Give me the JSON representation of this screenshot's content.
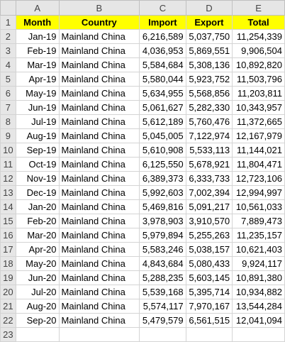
{
  "columns": [
    "A",
    "B",
    "C",
    "D",
    "E"
  ],
  "header_row_number": "1",
  "headers": [
    "Month",
    "Country",
    "Import",
    "Export",
    "Total"
  ],
  "header_fill_color": "#ffff00",
  "rows": [
    {
      "n": "2",
      "month": "Jan-19",
      "country": "Mainland China",
      "import": "6,216,589",
      "export": "5,037,750",
      "total": "11,254,339"
    },
    {
      "n": "3",
      "month": "Feb-19",
      "country": "Mainland China",
      "import": "4,036,953",
      "export": "5,869,551",
      "total": "9,906,504"
    },
    {
      "n": "4",
      "month": "Mar-19",
      "country": "Mainland China",
      "import": "5,584,684",
      "export": "5,308,136",
      "total": "10,892,820"
    },
    {
      "n": "5",
      "month": "Apr-19",
      "country": "Mainland China",
      "import": "5,580,044",
      "export": "5,923,752",
      "total": "11,503,796"
    },
    {
      "n": "6",
      "month": "May-19",
      "country": "Mainland China",
      "import": "5,634,955",
      "export": "5,568,856",
      "total": "11,203,811"
    },
    {
      "n": "7",
      "month": "Jun-19",
      "country": "Mainland China",
      "import": "5,061,627",
      "export": "5,282,330",
      "total": "10,343,957"
    },
    {
      "n": "8",
      "month": "Jul-19",
      "country": "Mainland China",
      "import": "5,612,189",
      "export": "5,760,476",
      "total": "11,372,665"
    },
    {
      "n": "9",
      "month": "Aug-19",
      "country": "Mainland China",
      "import": "5,045,005",
      "export": "7,122,974",
      "total": "12,167,979"
    },
    {
      "n": "10",
      "month": "Sep-19",
      "country": "Mainland China",
      "import": "5,610,908",
      "export": "5,533,113",
      "total": "11,144,021"
    },
    {
      "n": "11",
      "month": "Oct-19",
      "country": "Mainland China",
      "import": "6,125,550",
      "export": "5,678,921",
      "total": "11,804,471"
    },
    {
      "n": "12",
      "month": "Nov-19",
      "country": "Mainland China",
      "import": "6,389,373",
      "export": "6,333,733",
      "total": "12,723,106"
    },
    {
      "n": "13",
      "month": "Dec-19",
      "country": "Mainland China",
      "import": "5,992,603",
      "export": "7,002,394",
      "total": "12,994,997"
    },
    {
      "n": "14",
      "month": "Jan-20",
      "country": "Mainland China",
      "import": "5,469,816",
      "export": "5,091,217",
      "total": "10,561,033"
    },
    {
      "n": "15",
      "month": "Feb-20",
      "country": "Mainland China",
      "import": "3,978,903",
      "export": "3,910,570",
      "total": "7,889,473"
    },
    {
      "n": "16",
      "month": "Mar-20",
      "country": "Mainland China",
      "import": "5,979,894",
      "export": "5,255,263",
      "total": "11,235,157"
    },
    {
      "n": "17",
      "month": "Apr-20",
      "country": "Mainland China",
      "import": "5,583,246",
      "export": "5,038,157",
      "total": "10,621,403"
    },
    {
      "n": "18",
      "month": "May-20",
      "country": "Mainland China",
      "import": "4,843,684",
      "export": "5,080,433",
      "total": "9,924,117"
    },
    {
      "n": "19",
      "month": "Jun-20",
      "country": "Mainland China",
      "import": "5,288,235",
      "export": "5,603,145",
      "total": "10,891,380"
    },
    {
      "n": "20",
      "month": "Jul-20",
      "country": "Mainland China",
      "import": "5,539,168",
      "export": "5,395,714",
      "total": "10,934,882"
    },
    {
      "n": "21",
      "month": "Aug-20",
      "country": "Mainland China",
      "import": "5,574,117",
      "export": "7,970,167",
      "total": "13,544,284"
    },
    {
      "n": "22",
      "month": "Sep-20",
      "country": "Mainland China",
      "import": "5,479,579",
      "export": "6,561,515",
      "total": "12,041,094"
    },
    {
      "n": "23",
      "month": "",
      "country": "",
      "import": "",
      "export": "",
      "total": ""
    }
  ]
}
